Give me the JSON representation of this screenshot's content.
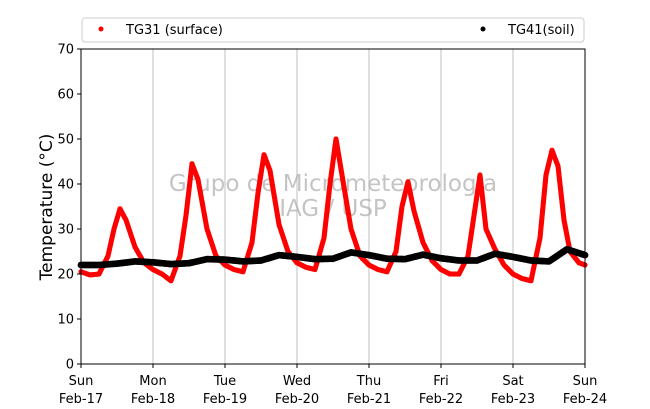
{
  "chart_data": {
    "type": "scatter",
    "title": "",
    "xlabel": "",
    "ylabel": "Temperature (°C)",
    "ylim": [
      0,
      70
    ],
    "yticks": [
      0,
      10,
      20,
      30,
      40,
      50,
      60,
      70
    ],
    "xlim": [
      "2019-02-17",
      "2019-02-24"
    ],
    "xticks": [
      {
        "day": "Sun",
        "date": "Feb-17"
      },
      {
        "day": "Mon",
        "date": "Feb-18"
      },
      {
        "day": "Tue",
        "date": "Feb-19"
      },
      {
        "day": "Wed",
        "date": "Feb-20"
      },
      {
        "day": "Thu",
        "date": "Feb-21"
      },
      {
        "day": "Fri",
        "date": "Feb-22"
      },
      {
        "day": "Sat",
        "date": "Feb-23"
      },
      {
        "day": "Sun",
        "date": "Feb-24"
      }
    ],
    "grid": "vertical",
    "legend_position": "top",
    "watermark": [
      "Grupo de Micrometeorologia",
      "IAG / USP"
    ],
    "series": [
      {
        "name": "TG31 (surface)",
        "color": "#ff0000",
        "points": [
          [
            "2019-02-17 00:00",
            20.5
          ],
          [
            "2019-02-17 03:00",
            19.8
          ],
          [
            "2019-02-17 06:00",
            20.0
          ],
          [
            "2019-02-17 09:00",
            24.0
          ],
          [
            "2019-02-17 11:00",
            30.0
          ],
          [
            "2019-02-17 13:00",
            34.5
          ],
          [
            "2019-02-17 15:00",
            32.0
          ],
          [
            "2019-02-17 18:00",
            26.0
          ],
          [
            "2019-02-17 21:00",
            22.5
          ],
          [
            "2019-02-18 00:00",
            21.0
          ],
          [
            "2019-02-18 03:00",
            20.0
          ],
          [
            "2019-02-18 06:00",
            18.5
          ],
          [
            "2019-02-18 09:00",
            24.0
          ],
          [
            "2019-02-18 11:00",
            33.0
          ],
          [
            "2019-02-18 13:00",
            44.5
          ],
          [
            "2019-02-18 15:00",
            41.0
          ],
          [
            "2019-02-18 18:00",
            30.0
          ],
          [
            "2019-02-18 21:00",
            24.0
          ],
          [
            "2019-02-19 00:00",
            22.0
          ],
          [
            "2019-02-19 03:00",
            21.0
          ],
          [
            "2019-02-19 06:00",
            20.5
          ],
          [
            "2019-02-19 09:00",
            27.0
          ],
          [
            "2019-02-19 11:00",
            38.0
          ],
          [
            "2019-02-19 13:00",
            46.5
          ],
          [
            "2019-02-19 15:00",
            43.0
          ],
          [
            "2019-02-19 18:00",
            31.0
          ],
          [
            "2019-02-19 21:00",
            25.0
          ],
          [
            "2019-02-20 00:00",
            22.5
          ],
          [
            "2019-02-20 03:00",
            21.5
          ],
          [
            "2019-02-20 06:00",
            21.0
          ],
          [
            "2019-02-20 09:00",
            28.0
          ],
          [
            "2019-02-20 11:00",
            40.0
          ],
          [
            "2019-02-20 13:00",
            50.0
          ],
          [
            "2019-02-20 15:00",
            42.0
          ],
          [
            "2019-02-20 18:00",
            30.0
          ],
          [
            "2019-02-20 21:00",
            24.0
          ],
          [
            "2019-02-21 00:00",
            22.0
          ],
          [
            "2019-02-21 03:00",
            21.0
          ],
          [
            "2019-02-21 06:00",
            20.5
          ],
          [
            "2019-02-21 09:00",
            25.0
          ],
          [
            "2019-02-21 11:00",
            35.0
          ],
          [
            "2019-02-21 13:00",
            40.5
          ],
          [
            "2019-02-21 15:00",
            34.0
          ],
          [
            "2019-02-21 18:00",
            27.0
          ],
          [
            "2019-02-21 21:00",
            23.0
          ],
          [
            "2019-02-22 00:00",
            21.0
          ],
          [
            "2019-02-22 03:00",
            20.0
          ],
          [
            "2019-02-22 06:00",
            20.0
          ],
          [
            "2019-02-22 09:00",
            24.0
          ],
          [
            "2019-02-22 11:00",
            33.0
          ],
          [
            "2019-02-22 13:00",
            42.0
          ],
          [
            "2019-02-22 15:00",
            30.0
          ],
          [
            "2019-02-22 18:00",
            25.5
          ],
          [
            "2019-02-22 21:00",
            22.0
          ],
          [
            "2019-02-23 00:00",
            20.0
          ],
          [
            "2019-02-23 03:00",
            19.0
          ],
          [
            "2019-02-23 06:00",
            18.5
          ],
          [
            "2019-02-23 09:00",
            28.0
          ],
          [
            "2019-02-23 11:00",
            42.0
          ],
          [
            "2019-02-23 13:00",
            47.5
          ],
          [
            "2019-02-23 15:00",
            44.0
          ],
          [
            "2019-02-23 17:00",
            32.0
          ],
          [
            "2019-02-23 19:00",
            25.0
          ],
          [
            "2019-02-23 22:00",
            22.5
          ],
          [
            "2019-02-24 00:00",
            22.0
          ]
        ]
      },
      {
        "name": "TG41(soil)",
        "color": "#000000",
        "points": [
          [
            "2019-02-17 00:00",
            22.0
          ],
          [
            "2019-02-17 06:00",
            22.0
          ],
          [
            "2019-02-17 12:00",
            22.3
          ],
          [
            "2019-02-17 18:00",
            22.8
          ],
          [
            "2019-02-18 00:00",
            22.6
          ],
          [
            "2019-02-18 06:00",
            22.2
          ],
          [
            "2019-02-18 12:00",
            22.4
          ],
          [
            "2019-02-18 18:00",
            23.3
          ],
          [
            "2019-02-19 00:00",
            23.2
          ],
          [
            "2019-02-19 06:00",
            22.8
          ],
          [
            "2019-02-19 12:00",
            23.0
          ],
          [
            "2019-02-19 18:00",
            24.2
          ],
          [
            "2019-02-20 00:00",
            23.8
          ],
          [
            "2019-02-20 06:00",
            23.3
          ],
          [
            "2019-02-20 12:00",
            23.4
          ],
          [
            "2019-02-20 18:00",
            24.8
          ],
          [
            "2019-02-21 00:00",
            24.2
          ],
          [
            "2019-02-21 06:00",
            23.4
          ],
          [
            "2019-02-21 12:00",
            23.3
          ],
          [
            "2019-02-21 18:00",
            24.3
          ],
          [
            "2019-02-22 00:00",
            23.5
          ],
          [
            "2019-02-22 06:00",
            23.0
          ],
          [
            "2019-02-22 12:00",
            23.0
          ],
          [
            "2019-02-22 18:00",
            24.5
          ],
          [
            "2019-02-23 00:00",
            23.8
          ],
          [
            "2019-02-23 06:00",
            23.0
          ],
          [
            "2019-02-23 12:00",
            22.8
          ],
          [
            "2019-02-23 18:00",
            25.5
          ],
          [
            "2019-02-24 00:00",
            24.2
          ]
        ]
      }
    ]
  }
}
